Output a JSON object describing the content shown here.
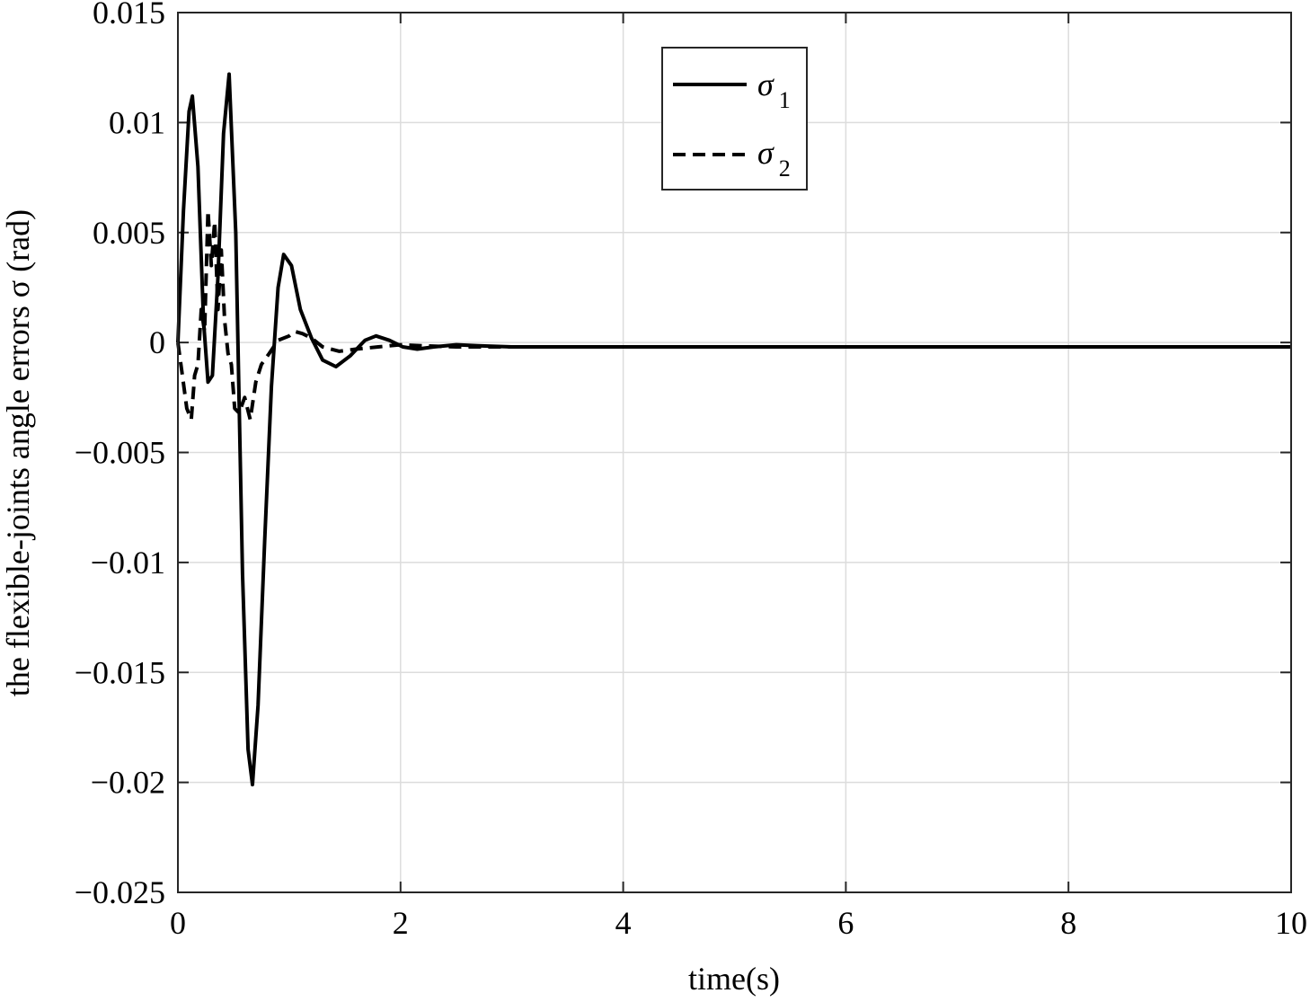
{
  "chart_data": {
    "type": "line",
    "title": "",
    "xlabel": "time(s)",
    "ylabel": "the flexible-joints angle errors σ (rad)",
    "xlim": [
      0,
      10
    ],
    "ylim": [
      -0.025,
      0.015
    ],
    "xticks": [
      0,
      2,
      4,
      6,
      8,
      10
    ],
    "xtick_labels": [
      "0",
      "2",
      "4",
      "6",
      "8",
      "10"
    ],
    "yticks": [
      0.015,
      0.01,
      0.005,
      0,
      -0.005,
      -0.01,
      -0.015,
      -0.02,
      -0.025
    ],
    "ytick_labels": [
      "0.015",
      "0.01",
      "0.005",
      "0",
      "−0.005",
      "−0.01",
      "−0.015",
      "−0.02",
      "−0.025"
    ],
    "grid": true,
    "legend_position": "top-center",
    "series": [
      {
        "name": "σ1",
        "legend_symbol": "σ",
        "legend_subscript": "1",
        "style": "solid",
        "color": "#000000",
        "x": [
          0,
          0.05,
          0.1,
          0.13,
          0.18,
          0.23,
          0.27,
          0.31,
          0.36,
          0.41,
          0.46,
          0.52,
          0.58,
          0.63,
          0.67,
          0.72,
          0.78,
          0.84,
          0.9,
          0.95,
          1.02,
          1.1,
          1.2,
          1.3,
          1.42,
          1.55,
          1.68,
          1.78,
          1.9,
          2.02,
          2.15,
          2.3,
          2.5,
          2.7,
          3.0,
          4.0,
          6.0,
          8.0,
          10.0
        ],
        "y": [
          0,
          0.006,
          0.0105,
          0.0112,
          0.008,
          0.001,
          -0.0018,
          -0.0015,
          0.003,
          0.0095,
          0.0122,
          0.005,
          -0.0105,
          -0.0185,
          -0.0201,
          -0.0165,
          -0.009,
          -0.002,
          0.0025,
          0.004,
          0.0035,
          0.0015,
          0.0002,
          -0.0008,
          -0.0011,
          -0.0006,
          0.0001,
          0.0003,
          0.0001,
          -0.0002,
          -0.0003,
          -0.0002,
          -0.0001,
          -0.00015,
          -0.0002,
          -0.0002,
          -0.0002,
          -0.0002,
          -0.0002
        ]
      },
      {
        "name": "σ2",
        "legend_symbol": "σ",
        "legend_subscript": "2",
        "style": "dashed",
        "color": "#000000",
        "x": [
          0,
          0.04,
          0.08,
          0.12,
          0.15,
          0.18,
          0.21,
          0.24,
          0.27,
          0.3,
          0.33,
          0.36,
          0.39,
          0.42,
          0.45,
          0.48,
          0.51,
          0.55,
          0.6,
          0.65,
          0.7,
          0.75,
          0.82,
          0.9,
          1.0,
          1.05,
          1.12,
          1.2,
          1.3,
          1.45,
          1.6,
          1.8,
          2.0,
          2.2,
          2.5,
          3.0,
          4.0,
          6.0,
          8.0,
          10.0
        ],
        "y": [
          0,
          -0.0015,
          -0.003,
          -0.0035,
          -0.0015,
          -0.001,
          0.0015,
          0.0005,
          0.006,
          0.0035,
          0.0055,
          0.0015,
          0.0042,
          0.001,
          -0.0005,
          -0.001,
          -0.003,
          -0.0032,
          -0.0025,
          -0.0035,
          -0.0018,
          -0.001,
          -0.0005,
          0.0001,
          0.0003,
          0.0005,
          0.0004,
          0.0002,
          -0.0002,
          -0.0004,
          -0.0003,
          -0.0002,
          -0.0001,
          -0.00015,
          -0.0002,
          -0.0002,
          -0.0002,
          -0.0002,
          -0.0002,
          -0.0002
        ]
      }
    ]
  }
}
